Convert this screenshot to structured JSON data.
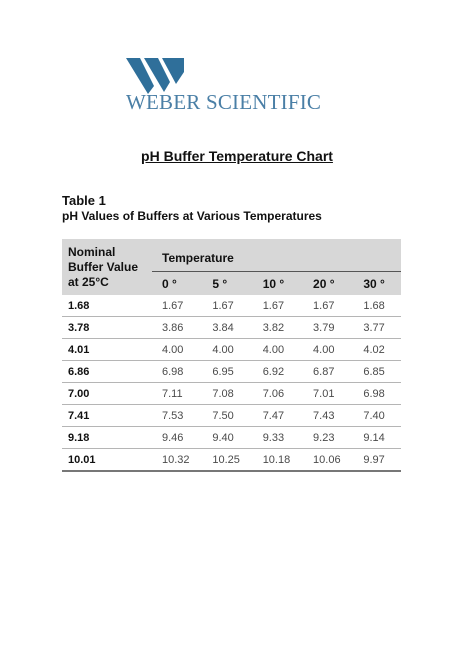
{
  "logo": {
    "name": "WEBER SCIENTIFIC",
    "brand_color": "#4a7fa6",
    "mark_color": "#2f6f9a",
    "icon": "weber-w-logo-icon"
  },
  "document": {
    "title": "pH Buffer Temperature Chart",
    "table_label": "Table 1",
    "table_caption": "pH Values of Buffers at Various Temperatures"
  },
  "table": {
    "header_nominal": "Nominal Buffer Value at 25°C",
    "header_temperature": "Temperature",
    "temperature_columns": [
      "0 °",
      "5 °",
      "10 °",
      "20 °",
      "30 °"
    ],
    "rows": [
      {
        "nominal": "1.68",
        "values": [
          "1.67",
          "1.67",
          "1.67",
          "1.67",
          "1.68"
        ]
      },
      {
        "nominal": "3.78",
        "values": [
          "3.86",
          "3.84",
          "3.82",
          "3.79",
          "3.77"
        ]
      },
      {
        "nominal": "4.01",
        "values": [
          "4.00",
          "4.00",
          "4.00",
          "4.00",
          "4.02"
        ]
      },
      {
        "nominal": "6.86",
        "values": [
          "6.98",
          "6.95",
          "6.92",
          "6.87",
          "6.85"
        ]
      },
      {
        "nominal": "7.00",
        "values": [
          "7.11",
          "7.08",
          "7.06",
          "7.01",
          "6.98"
        ]
      },
      {
        "nominal": "7.41",
        "values": [
          "7.53",
          "7.50",
          "7.47",
          "7.43",
          "7.40"
        ]
      },
      {
        "nominal": "9.18",
        "values": [
          "9.46",
          "9.40",
          "9.33",
          "9.23",
          "9.14"
        ]
      },
      {
        "nominal": "10.01",
        "values": [
          "10.32",
          "10.25",
          "10.18",
          "10.06",
          "9.97"
        ]
      }
    ]
  }
}
